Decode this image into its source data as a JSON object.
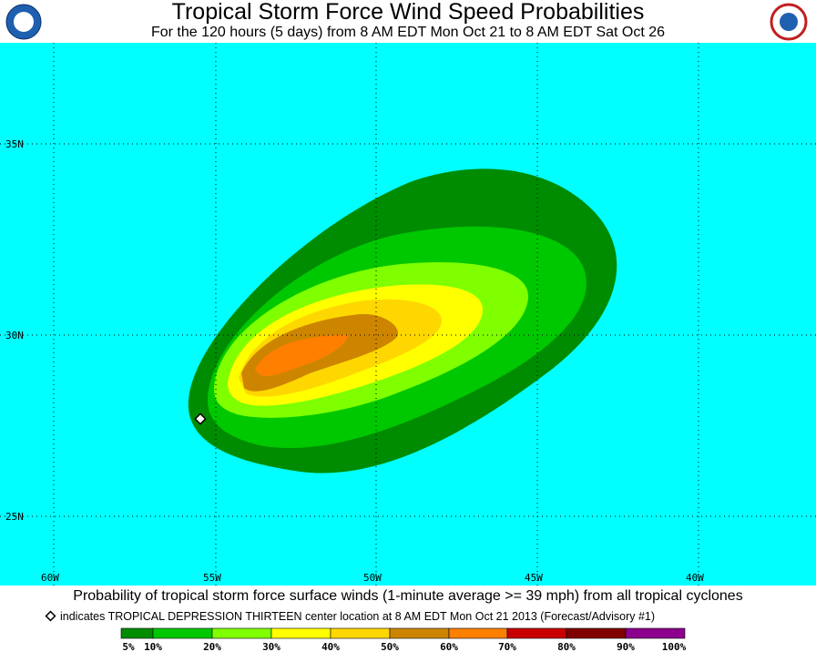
{
  "header": {
    "title": "Tropical Storm Force Wind Speed Probabilities",
    "subtitle": "For the 120 hours (5 days) from 8 AM EDT Mon Oct 21 to 8 AM EDT Sat Oct 26"
  },
  "map": {
    "lat_labels": [
      "35N",
      "30N",
      "25N"
    ],
    "lon_labels": [
      "60W",
      "55W",
      "50W",
      "45W",
      "40W"
    ],
    "background": "#00ffff"
  },
  "caption": "Probability of tropical storm force surface winds (1-minute average >= 39 mph) from all tropical cyclones",
  "marker_note": "indicates TROPICAL DEPRESSION THIRTEEN center location at 8 AM EDT Mon Oct 21 2013 (Forecast/Advisory #1)",
  "legend": {
    "labels": [
      "5%",
      "10%",
      "20%",
      "30%",
      "40%",
      "50%",
      "60%",
      "70%",
      "80%",
      "90%",
      "100%"
    ],
    "colors": [
      "#008c00",
      "#00c800",
      "#7fff00",
      "#ffff00",
      "#ffd700",
      "#cd8500",
      "#ff7f00",
      "#c80000",
      "#800000",
      "#8c008c"
    ]
  }
}
